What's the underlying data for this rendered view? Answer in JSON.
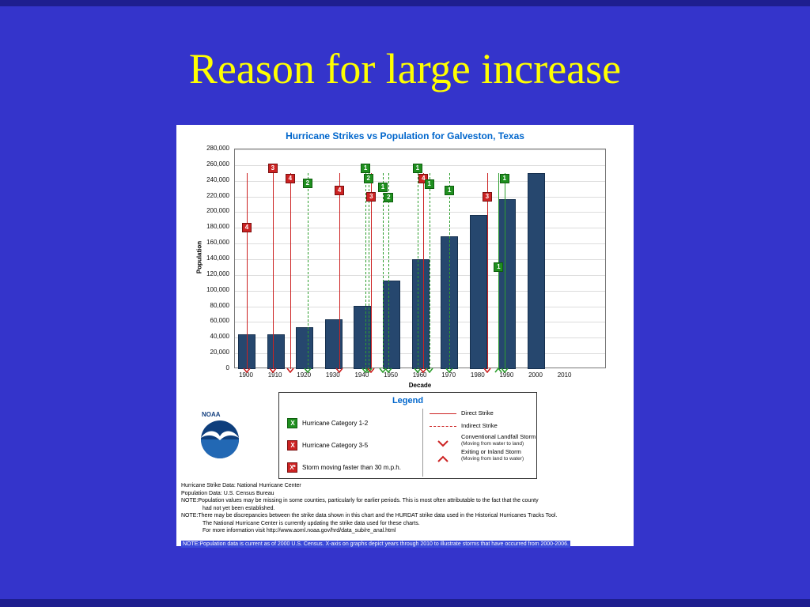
{
  "slide": {
    "title": "Reason for large increase"
  },
  "colors": {
    "slide_bg": "#3434CB",
    "edge_bg": "#1E1E8F",
    "title_text": "#FFFF00",
    "chart_title_text": "#0066CC",
    "bar": "#26476E",
    "red": "#CC2222",
    "green": "#2E9E2E",
    "grid": "#DCDCDC",
    "note_highlight": "#3A49D8"
  },
  "chart_data": {
    "type": "bar",
    "title": "Hurricane Strikes vs Population for Galveston, Texas",
    "xlabel": "Decade",
    "ylabel": "Population",
    "categories": [
      1900,
      1910,
      1920,
      1930,
      1940,
      1950,
      1960,
      1970,
      1980,
      1990,
      2000,
      2010
    ],
    "values": [
      44000,
      44000,
      53000,
      64000,
      81000,
      113000,
      140000,
      169000,
      196000,
      217000,
      250000,
      null
    ],
    "ylim": [
      0,
      280000
    ],
    "ytick_step": 20000,
    "grid": true,
    "legend_position": "below",
    "strikes": [
      {
        "year": 1900,
        "category": 4,
        "severity": "red",
        "line": "solid",
        "badge_value": 180000,
        "arrow": "down"
      },
      {
        "year": 1909,
        "category": 3,
        "severity": "red",
        "line": "solid",
        "badge_value": 256000,
        "arrow": "down"
      },
      {
        "year": 1915,
        "category": 4,
        "severity": "red",
        "line": "solid",
        "badge_value": 243000,
        "arrow": "down"
      },
      {
        "year": 1921,
        "category": 2,
        "severity": "green",
        "line": "dashed",
        "badge_value": 237000,
        "arrow": "down"
      },
      {
        "year": 1932,
        "category": 4,
        "severity": "red",
        "line": "solid",
        "badge_value": 228000,
        "arrow": "down"
      },
      {
        "year": 1941,
        "category": 1,
        "severity": "green",
        "line": "dashed",
        "badge_value": 256000,
        "arrow": "down"
      },
      {
        "year": 1942,
        "category": 2,
        "severity": "green",
        "line": "dashed",
        "badge_value": 243000,
        "arrow": "down"
      },
      {
        "year": 1943,
        "category": 3,
        "severity": "red",
        "line": "solid",
        "badge_value": 220000,
        "arrow": "down"
      },
      {
        "year": 1947,
        "category": 1,
        "severity": "green",
        "line": "dashed",
        "badge_value": 232000,
        "arrow": "down"
      },
      {
        "year": 1949,
        "category": 2,
        "severity": "green",
        "line": "dashed",
        "badge_value": 219000,
        "arrow": "down"
      },
      {
        "year": 1959,
        "category": 1,
        "severity": "green",
        "line": "dashed",
        "badge_value": 256000,
        "arrow": "down"
      },
      {
        "year": 1961,
        "category": 4,
        "severity": "red",
        "line": "solid",
        "badge_value": 243000,
        "arrow": "down"
      },
      {
        "year": 1963,
        "category": 1,
        "severity": "green",
        "line": "dashed",
        "badge_value": 236000,
        "arrow": "down"
      },
      {
        "year": 1970,
        "category": 1,
        "severity": "green",
        "line": "dashed",
        "badge_value": 228000,
        "arrow": "down"
      },
      {
        "year": 1983,
        "category": 3,
        "severity": "red",
        "line": "solid",
        "badge_value": 220000,
        "arrow": "down"
      },
      {
        "year": 1987,
        "category": 1,
        "severity": "green",
        "line": "solid",
        "badge_value": 130000,
        "arrow": "up"
      },
      {
        "year": 1989,
        "category": 1,
        "severity": "green",
        "line": "solid",
        "badge_value": 243000,
        "arrow": "down"
      }
    ]
  },
  "legend": {
    "title": "Legend",
    "symbols": [
      {
        "glyph": "X",
        "color": "green",
        "label": "Hurricane Category 1-2"
      },
      {
        "glyph": "X",
        "color": "red",
        "label": "Hurricane Category 3-5"
      },
      {
        "glyph": "X*",
        "color": "red",
        "label": "Storm moving faster than 30 m.p.h."
      }
    ],
    "lines": [
      {
        "style": "solid",
        "label": "Direct Strike",
        "sub": ""
      },
      {
        "style": "dashed",
        "label": "Indirect Strike",
        "sub": ""
      },
      {
        "style": "chevron-down",
        "label": "Conventional Landfall Storm",
        "sub": "(Moving from water to land)"
      },
      {
        "style": "chevron-up",
        "label": "Exiting or Inland Storm",
        "sub": "(Moving from land to water)"
      }
    ]
  },
  "noaa": {
    "label": "NOAA"
  },
  "notes": [
    "Hurricane Strike Data:  National Hurricane Center",
    "Population Data:  U.S. Census Bureau",
    "NOTE:Population values may be missing in some counties, particularly for earlier periods. This is most often attributable to the fact that the county",
    "had not yet been established.",
    "NOTE:There may be discrepancies between the strike data shown in this chart and the HURDAT strike data used in the Historical Hurricanes Tracks Tool.",
    "The National Hurricane Center is currently updating the strike data used for these charts.",
    "For more information visit http://www.aoml.noaa.gov/hrd/data_sub/re_anal.html",
    "NOTE:Population data is current as of 2000 U.S. Census.  X-axis on graphs depict years through 2010 to illustrate storms that have occurred from 2000-2006."
  ]
}
